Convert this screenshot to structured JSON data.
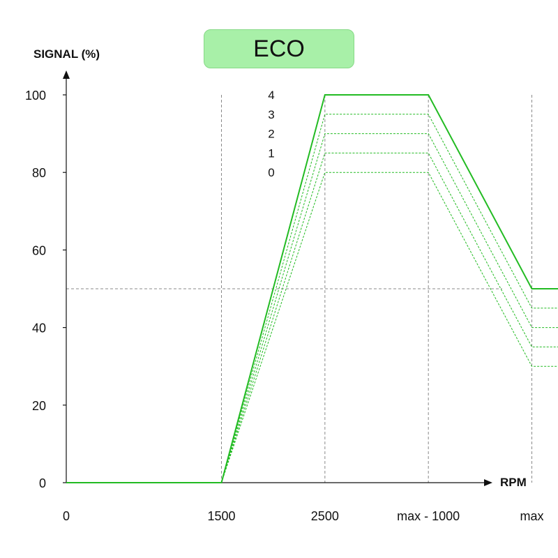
{
  "mode_badge": {
    "label": "ECO",
    "fill": "#a8f0a8"
  },
  "chart_data": {
    "type": "line",
    "ylabel": "SIGNAL (%)",
    "xlabel": "RPM",
    "ylim": [
      0,
      100
    ],
    "y_ticks": [
      0,
      20,
      40,
      60,
      80,
      100
    ],
    "x_ticks": [
      "0",
      "1500",
      "2500",
      "max - 1000",
      "max"
    ],
    "x_tick_positions": [
      0,
      1500,
      2500,
      3500,
      4500
    ],
    "reference_lines": {
      "vertical_at_ticks": [
        "1500",
        "2500",
        "max - 1000",
        "max"
      ],
      "horizontal_at_y": 50
    },
    "level_labels": [
      "4",
      "3",
      "2",
      "1",
      "0"
    ],
    "series": [
      {
        "name": "4",
        "style": "solid",
        "x": [
          0,
          1500,
          2500,
          3500,
          4500,
          5100
        ],
        "y": [
          0,
          0,
          100,
          100,
          50,
          50
        ]
      },
      {
        "name": "3",
        "style": "dashed",
        "x": [
          1500,
          2500,
          3500,
          4500,
          5100
        ],
        "y": [
          0,
          95,
          95,
          45,
          45
        ]
      },
      {
        "name": "2",
        "style": "dashed",
        "x": [
          1500,
          2500,
          3500,
          4500,
          5100
        ],
        "y": [
          0,
          90,
          90,
          40,
          40
        ]
      },
      {
        "name": "1",
        "style": "dashed",
        "x": [
          1500,
          2500,
          3500,
          4500,
          5100
        ],
        "y": [
          0,
          85,
          85,
          35,
          35
        ]
      },
      {
        "name": "0",
        "style": "dashed",
        "x": [
          1500,
          2500,
          3500,
          4500,
          5100
        ],
        "y": [
          0,
          80,
          80,
          30,
          30
        ]
      }
    ],
    "colors": {
      "line": "#22bb22",
      "guide": "#888888",
      "axis": "#111111"
    },
    "grid": false
  }
}
